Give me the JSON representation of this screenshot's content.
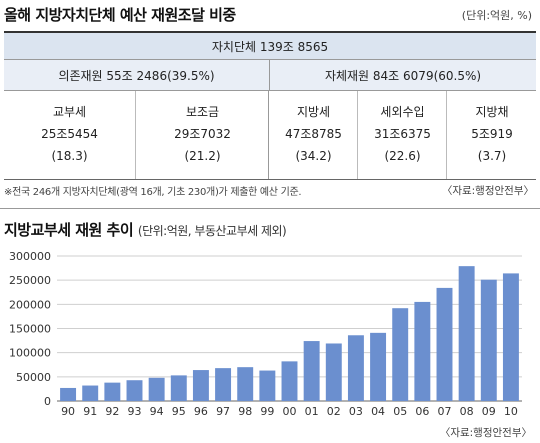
{
  "table": {
    "title": "올해 지방자치단체 예산 재원조달 비중",
    "unit": "(단위:억원, %)",
    "total": "자치단체 139조 8565",
    "dependent": "의존재원 55조 2486(39.5%)",
    "own": "자체재원 84조 6079(60.5%)",
    "items": [
      {
        "name": "교부세",
        "amount": "25조5454",
        "share": "(18.3)"
      },
      {
        "name": "보조금",
        "amount": "29조7032",
        "share": "(21.2)"
      },
      {
        "name": "지방세",
        "amount": "47조8785",
        "share": "(34.2)"
      },
      {
        "name": "세외수입",
        "amount": "31조6375",
        "share": "(22.6)"
      },
      {
        "name": "지방채",
        "amount": "5조919",
        "share": "(3.7)"
      }
    ],
    "note": "※전국 246개 지방자치단체(광역 16개, 기초 230개)가 제출한 예산 기준.",
    "source": "〈자료:행정안전부〉"
  },
  "chart_data": {
    "type": "bar",
    "title": "지방교부세 재원 추이",
    "subtitle": "(단위:억원, 부동산교부세 제외)",
    "categories": [
      "90",
      "91",
      "92",
      "93",
      "94",
      "95",
      "96",
      "97",
      "98",
      "99",
      "00",
      "01",
      "02",
      "03",
      "04",
      "05",
      "06",
      "07",
      "08",
      "09",
      "10"
    ],
    "values": [
      27000,
      32000,
      38000,
      43000,
      48000,
      53000,
      64000,
      68000,
      70000,
      63000,
      82000,
      124000,
      119000,
      136000,
      141000,
      192000,
      205000,
      234000,
      279000,
      251000,
      264000
    ],
    "ylim": [
      0,
      300000
    ],
    "yticks": [
      "0",
      "50000",
      "100000",
      "150000",
      "200000",
      "250000",
      "300000"
    ],
    "grid": true,
    "bar_color": "#6b8fcf",
    "source": "〈자료:행정안전부〉"
  }
}
